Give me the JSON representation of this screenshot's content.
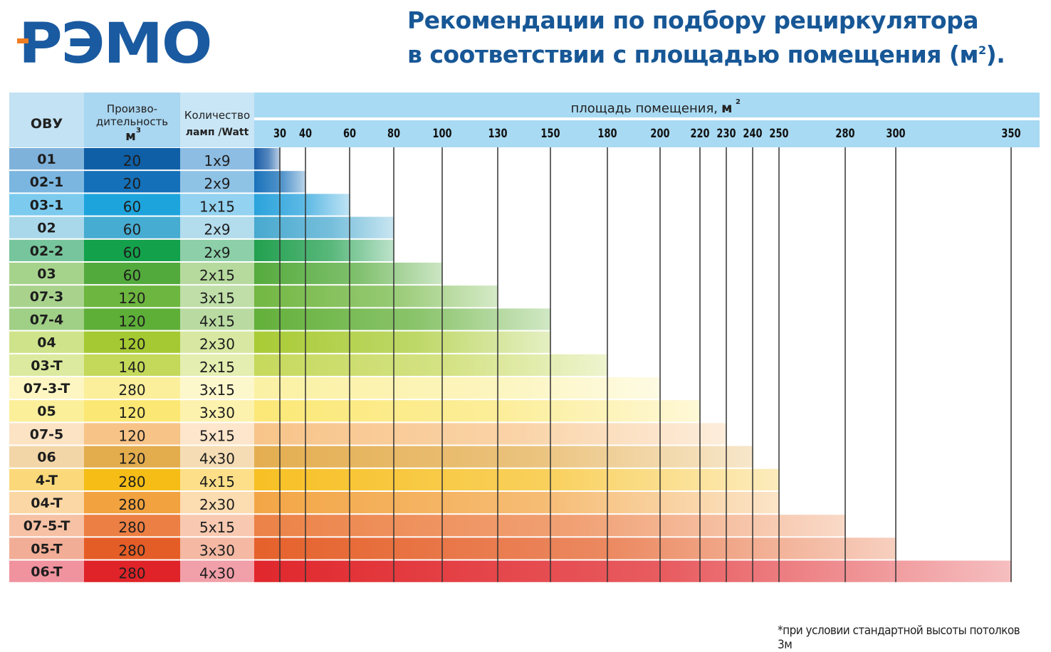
{
  "brand": {
    "logo_text": "РЭМО",
    "primary_color": "#1a5aa0",
    "accent_color": "#ef7d22"
  },
  "header": {
    "title_line1": "Рекомендации по подбору рециркулятора",
    "title_line2": "в соответствии с площадью помещения (м",
    "title_sup": "2",
    "title_end": ")."
  },
  "footnote": "*при условии стандартной высоты потолков 3м",
  "chart_data": {
    "type": "bar",
    "orientation": "horizontal",
    "title": "Рекомендации по подбору рециркулятора в соответствии с площадью помещения (м²)",
    "columns": {
      "model": "ОВУ",
      "capacity_line1": "Произво-",
      "capacity_line2": "дительность",
      "capacity_unit": "м",
      "capacity_unit_sup": "3",
      "lamps_line1": "Количество",
      "lamps_line2": "ламп /Watt"
    },
    "xlabel": "площадь помещения,",
    "xlabel_unit": "м",
    "xlabel_unit_sup": "2",
    "x_ticks": [
      30,
      40,
      60,
      80,
      100,
      130,
      150,
      180,
      200,
      220,
      230,
      240,
      250,
      280,
      300,
      350
    ],
    "xlim": [
      0,
      350
    ],
    "grid": true,
    "rows": [
      {
        "model": "01",
        "capacity": "20",
        "lamps": "1x9",
        "max_area": 30,
        "c_model": "#7fb2db",
        "c_cap": "#0f5fa6",
        "c_lamp": "#8dbde3",
        "bar": "#1b5ea8"
      },
      {
        "model": "02-1",
        "capacity": "20",
        "lamps": "2x9",
        "max_area": 40,
        "c_model": "#7ab6e0",
        "c_cap": "#1470b8",
        "c_lamp": "#8fc3e6",
        "bar": "#1a72ba"
      },
      {
        "model": "03-1",
        "capacity": "60",
        "lamps": "1x15",
        "max_area": 60,
        "c_model": "#7ccbee",
        "c_cap": "#1ea4dd",
        "c_lamp": "#93d2f0",
        "bar": "#2aa3dc"
      },
      {
        "model": "02",
        "capacity": "60",
        "lamps": "2x9",
        "max_area": 80,
        "c_model": "#a9d8ea",
        "c_cap": "#46acd1",
        "c_lamp": "#b3dcec",
        "bar": "#48a9cf"
      },
      {
        "model": "02-2",
        "capacity": "60",
        "lamps": "2x9",
        "max_area": 80,
        "c_model": "#77c59c",
        "c_cap": "#14a14c",
        "c_lamp": "#8ccfa8",
        "bar": "#22a04f"
      },
      {
        "model": "03",
        "capacity": "60",
        "lamps": "2x15",
        "max_area": 100,
        "c_model": "#a6d38c",
        "c_cap": "#52aa3c",
        "c_lamp": "#b6da9e",
        "bar": "#55ab3d"
      },
      {
        "model": "07-3",
        "capacity": "120",
        "lamps": "3x15",
        "max_area": 130,
        "c_model": "#a9d38d",
        "c_cap": "#6db63f",
        "c_lamp": "#bfdea8",
        "bar": "#72b742"
      },
      {
        "model": "07-4",
        "capacity": "120",
        "lamps": "4x15",
        "max_area": 150,
        "c_model": "#a0cf86",
        "c_cap": "#5eaf38",
        "c_lamp": "#b9dba2",
        "bar": "#63b03a"
      },
      {
        "model": "04",
        "capacity": "120",
        "lamps": "2x30",
        "max_area": 150,
        "c_model": "#cfe38b",
        "c_cap": "#a5c932",
        "c_lamp": "#d8e8a2",
        "bar": "#a9cb35"
      },
      {
        "model": "03-T",
        "capacity": "140",
        "lamps": "2x15",
        "max_area": 180,
        "c_model": "#dcea9f",
        "c_cap": "#c4d85a",
        "c_lamp": "#e3eeb0",
        "bar": "#c6d95c"
      },
      {
        "model": "07-3-T",
        "capacity": "280",
        "lamps": "3x15",
        "max_area": 200,
        "c_model": "#fdf6c3",
        "c_cap": "#fbef9b",
        "c_lamp": "#fdf7cc",
        "bar": "#fbf1a4"
      },
      {
        "model": "05",
        "capacity": "120",
        "lamps": "3x30",
        "max_area": 220,
        "c_model": "#fcef9a",
        "c_cap": "#fbe773",
        "c_lamp": "#fdf2ad",
        "bar": "#fbe877"
      },
      {
        "model": "07-5",
        "capacity": "120",
        "lamps": "5x15",
        "max_area": 230,
        "c_model": "#fce3c4",
        "c_cap": "#f8c387",
        "c_lamp": "#fde6cb",
        "bar": "#f8c489"
      },
      {
        "model": "06",
        "capacity": "120",
        "lamps": "4x30",
        "max_area": 240,
        "c_model": "#f3d6a8",
        "c_cap": "#e3ad4d",
        "c_lamp": "#f5dcb4",
        "bar": "#e4ae50"
      },
      {
        "model": "4-T",
        "capacity": "280",
        "lamps": "4x15",
        "max_area": 250,
        "c_model": "#fbd97a",
        "c_cap": "#f6bd16",
        "c_lamp": "#fcdf88",
        "bar": "#f7c024"
      },
      {
        "model": "04-T",
        "capacity": "280",
        "lamps": "2x30",
        "max_area": 250,
        "c_model": "#fbd7a5",
        "c_cap": "#f2a23f",
        "c_lamp": "#fcdcb1",
        "bar": "#f3a646"
      },
      {
        "model": "07-5-T",
        "capacity": "280",
        "lamps": "5x15",
        "max_area": 280,
        "c_model": "#f6c1a4",
        "c_cap": "#ec7f43",
        "c_lamp": "#f8c9b0",
        "bar": "#ec8247"
      },
      {
        "model": "05-T",
        "capacity": "280",
        "lamps": "3x30",
        "max_area": 300,
        "c_model": "#f2ad96",
        "c_cap": "#e55d26",
        "c_lamp": "#f4b8a3",
        "bar": "#e5612b"
      },
      {
        "model": "06-T",
        "capacity": "280",
        "lamps": "4x30",
        "max_area": 350,
        "c_model": "#f0939e",
        "c_cap": "#df2328",
        "c_lamp": "#f19fa8",
        "bar": "#e0272c"
      }
    ],
    "header_colors": {
      "model": "#c3e2f3",
      "capacity": "#a9d6f1",
      "lamps": "#c9e6f6",
      "area": "#a8daf3"
    }
  }
}
